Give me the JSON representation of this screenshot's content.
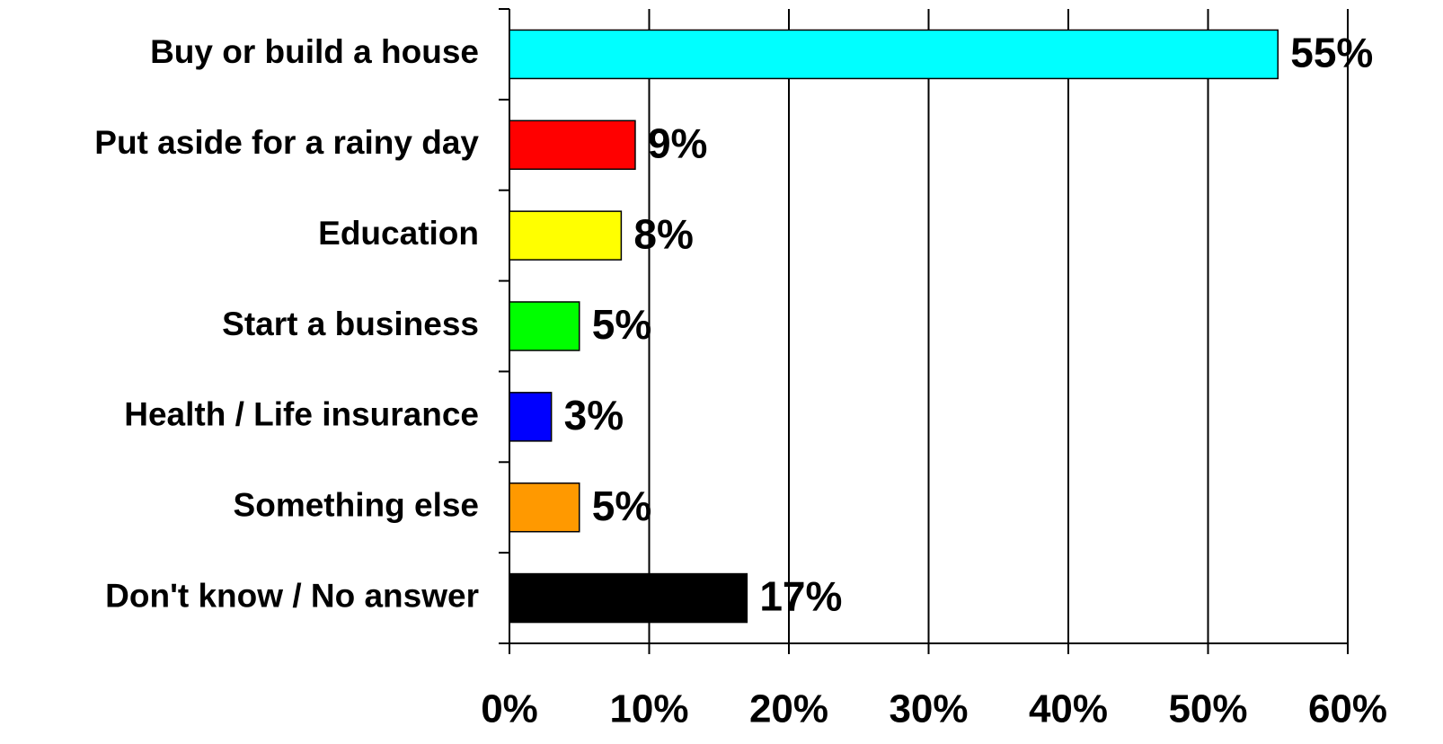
{
  "chart_data": {
    "type": "bar",
    "orientation": "horizontal",
    "categories": [
      "Buy or build a house",
      "Put aside for a rainy day",
      "Education",
      "Start a business",
      "Health / Life insurance",
      "Something else",
      "Don't know / No answer"
    ],
    "values": [
      55,
      9,
      8,
      5,
      3,
      5,
      17
    ],
    "value_labels": [
      "55%",
      "9%",
      "8%",
      "5%",
      "3%",
      "5%",
      "17%"
    ],
    "colors": [
      "#00ffff",
      "#ff0000",
      "#ffff00",
      "#00ff00",
      "#0000ff",
      "#ff9900",
      "#000000"
    ],
    "xlim": [
      0,
      60
    ],
    "xticks": [
      {
        "value": 0,
        "label": "0%"
      },
      {
        "value": 10,
        "label": "10%"
      },
      {
        "value": 20,
        "label": "20%"
      },
      {
        "value": 30,
        "label": "30%"
      },
      {
        "value": 40,
        "label": "40%"
      },
      {
        "value": 50,
        "label": "50%"
      },
      {
        "value": 60,
        "label": "60%"
      }
    ],
    "grid": true
  }
}
